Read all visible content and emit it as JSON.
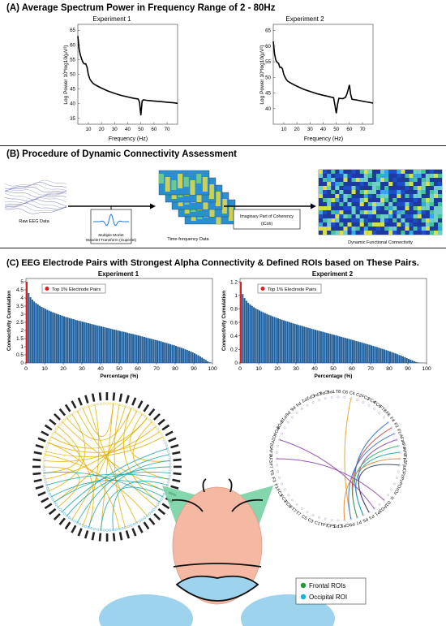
{
  "panel_a": {
    "title": "(A) Average Spectrum Power in Frequency Range of 2 - 80Hz",
    "plot1_title": "Experiment 1",
    "plot2_title": "Experiment 2",
    "xlabel": "Frequency (Hz)",
    "ylabel": "Log Power 10*log10(μV²)"
  },
  "panel_b": {
    "title": "(B) Procedure of Dynamic Connectivity Assessment",
    "raw_label": "Raw EEG Data",
    "wavelet_label_1": "Multiple Morlet",
    "wavelet_label_2": "Wavelet Transform (Superlet)",
    "tf_label": "Time-frequency Data",
    "icoh_label_1": "Imaginary Part of Coherency",
    "icoh_label_2": "(iCoh)",
    "dfc_label": "Dynamic Functional Connectivity"
  },
  "panel_c": {
    "title": "(C) EEG Electrode Pairs with Strongest Alpha Connectivity & Defined ROIs based on These Pairs.",
    "plot1_title": "Experiment 1",
    "plot2_title": "Experiment 2",
    "xlabel": "Percentage (%)",
    "ylabel": "Connectivity Cumulation",
    "legend": "Top 1% Electrode Pairs",
    "roi_frontal": "Frontal ROIs",
    "roi_occipital": "Occipital ROI",
    "colors": {
      "frontal": "#1f9d3c",
      "occipital": "#1bb3d6",
      "top": "#e41a1c",
      "bars": "#1f5f9b"
    }
  },
  "circle2_labels": [
    "T8",
    "C6",
    "C4",
    "C2",
    "FC2",
    "FC4",
    "FC6",
    "FT8",
    "F6",
    "F4",
    "F2",
    "Fz",
    "AFz",
    "AF4",
    "AF8",
    "Fp2",
    "Fpz",
    "CPz",
    "Pz",
    "POz",
    "Oz",
    "Iz",
    "O1",
    "PO3",
    "P1",
    "P3",
    "P5",
    "P7",
    "P9",
    "CP1",
    "CP3",
    "CP5",
    "TP7",
    "C1",
    "C3",
    "C5",
    "T7",
    "FT7",
    "FC5",
    "FC3",
    "FC1",
    "F1",
    "F3",
    "F5",
    "F7",
    "AF3",
    "AF7",
    "Fp1",
    "O2",
    "PO4",
    "PO8",
    "P10",
    "P8",
    "P6",
    "P4",
    "P2",
    "CP2",
    "CP4",
    "CP6",
    "TP8"
  ],
  "chart_data": [
    {
      "type": "line",
      "title": "Experiment 1",
      "xlabel": "Frequency (Hz)",
      "ylabel": "Log Power 10*log10(μV²)",
      "xlim": [
        2,
        78
      ],
      "ylim": [
        33,
        67
      ],
      "xticks": [
        10,
        20,
        30,
        40,
        50,
        60,
        70
      ],
      "yticks": [
        35,
        40,
        45,
        50,
        55,
        60,
        65
      ],
      "x": [
        2,
        3,
        4,
        5,
        6,
        7,
        8,
        9,
        10,
        11,
        12,
        13,
        14,
        15,
        17,
        20,
        25,
        30,
        35,
        40,
        45,
        48,
        49,
        49.5,
        50,
        50.5,
        51,
        52,
        55,
        60,
        65,
        70,
        75,
        78
      ],
      "y": [
        63,
        58.5,
        56.5,
        55,
        54,
        53.5,
        53.6,
        52.5,
        50,
        48.5,
        47.8,
        47.2,
        46.8,
        46.5,
        46,
        45.3,
        44.3,
        43.5,
        42.8,
        42.3,
        41.8,
        41.6,
        40.5,
        38,
        36,
        38.5,
        40.9,
        41.3,
        41.1,
        40.9,
        40.7,
        40.5,
        40.3,
        40.1
      ]
    },
    {
      "type": "line",
      "title": "Experiment 2",
      "xlabel": "Frequency (Hz)",
      "ylabel": "Log Power 10*log10(μV²)",
      "xlim": [
        2,
        78
      ],
      "ylim": [
        35,
        67
      ],
      "xticks": [
        10,
        20,
        30,
        40,
        50,
        60,
        70
      ],
      "yticks": [
        40,
        45,
        50,
        55,
        60,
        65
      ],
      "x": [
        2,
        3,
        4,
        5,
        6,
        7,
        8,
        9,
        10,
        11,
        12,
        13,
        15,
        18,
        20,
        25,
        30,
        35,
        40,
        45,
        48,
        49,
        50,
        51,
        52,
        55,
        57,
        58,
        59,
        60,
        61,
        62,
        65,
        70,
        78
      ],
      "y": [
        61.5,
        57.5,
        55.5,
        54.8,
        54.5,
        53.2,
        53.3,
        52.8,
        51,
        50,
        49.3,
        48.8,
        48.3,
        47.6,
        47.2,
        46.2,
        45.5,
        44.8,
        44.3,
        43.8,
        43.5,
        41,
        38.5,
        41.5,
        43.3,
        43.2,
        43.6,
        44.5,
        46,
        47.6,
        44.5,
        43,
        42.8,
        42.4,
        41.8
      ]
    },
    {
      "type": "bar",
      "title": "Experiment 1",
      "xlabel": "Percentage (%)",
      "ylabel": "Connectivity Cumulation",
      "xlim": [
        0,
        100
      ],
      "ylim": [
        0,
        5.2
      ],
      "xticks": [
        0,
        10,
        20,
        30,
        40,
        50,
        60,
        70,
        80,
        90,
        100
      ],
      "yticks": [
        0,
        0.5,
        1,
        1.5,
        2,
        2.5,
        3,
        3.5,
        4,
        4.5,
        5
      ],
      "legend": "Top 1% Electrode Pairs",
      "legend_position": "top-left",
      "bar_count": 100,
      "values": [
        5.0,
        4.3,
        4.05,
        3.9,
        3.78,
        3.68,
        3.6,
        3.52,
        3.45,
        3.39,
        3.33,
        3.27,
        3.22,
        3.17,
        3.12,
        3.08,
        3.03,
        2.99,
        2.95,
        2.91,
        2.87,
        2.83,
        2.8,
        2.76,
        2.73,
        2.7,
        2.66,
        2.63,
        2.6,
        2.57,
        2.54,
        2.51,
        2.48,
        2.45,
        2.42,
        2.39,
        2.36,
        2.33,
        2.3,
        2.28,
        2.25,
        2.22,
        2.19,
        2.16,
        2.14,
        2.11,
        2.08,
        2.05,
        2.03,
        2.0,
        1.97,
        1.94,
        1.92,
        1.89,
        1.86,
        1.83,
        1.8,
        1.78,
        1.75,
        1.72,
        1.69,
        1.66,
        1.63,
        1.6,
        1.57,
        1.54,
        1.51,
        1.48,
        1.45,
        1.42,
        1.39,
        1.36,
        1.33,
        1.29,
        1.26,
        1.23,
        1.19,
        1.16,
        1.12,
        1.09,
        1.05,
        1.01,
        0.97,
        0.93,
        0.89,
        0.84,
        0.8,
        0.75,
        0.7,
        0.65,
        0.59,
        0.53,
        0.47,
        0.4,
        0.33,
        0.26,
        0.18,
        0.1,
        0.04,
        0.01
      ]
    },
    {
      "type": "bar",
      "title": "Experiment 2",
      "xlabel": "Percentage (%)",
      "ylabel": "Connectivity Cumulation",
      "xlim": [
        0,
        100
      ],
      "ylim": [
        0,
        1.25
      ],
      "xticks": [
        0,
        10,
        20,
        30,
        40,
        50,
        60,
        70,
        80,
        90,
        100
      ],
      "yticks": [
        0,
        0.2,
        0.4,
        0.6,
        0.8,
        1,
        1.2
      ],
      "legend": "Top 1% Electrode Pairs",
      "legend_position": "top-left",
      "bar_count": 100,
      "values": [
        1.2,
        1.02,
        0.96,
        0.92,
        0.89,
        0.865,
        0.845,
        0.825,
        0.808,
        0.792,
        0.777,
        0.763,
        0.75,
        0.737,
        0.725,
        0.713,
        0.702,
        0.691,
        0.68,
        0.67,
        0.66,
        0.65,
        0.64,
        0.631,
        0.622,
        0.613,
        0.604,
        0.595,
        0.587,
        0.578,
        0.57,
        0.562,
        0.554,
        0.546,
        0.538,
        0.53,
        0.522,
        0.514,
        0.506,
        0.499,
        0.491,
        0.483,
        0.476,
        0.468,
        0.461,
        0.453,
        0.446,
        0.438,
        0.431,
        0.423,
        0.416,
        0.408,
        0.401,
        0.393,
        0.386,
        0.378,
        0.371,
        0.363,
        0.356,
        0.348,
        0.34,
        0.333,
        0.325,
        0.317,
        0.309,
        0.301,
        0.293,
        0.285,
        0.277,
        0.269,
        0.26,
        0.252,
        0.243,
        0.235,
        0.226,
        0.217,
        0.208,
        0.199,
        0.19,
        0.18,
        0.17,
        0.16,
        0.15,
        0.14,
        0.129,
        0.118,
        0.107,
        0.096,
        0.084,
        0.072,
        0.06,
        0.048,
        0.036,
        0.025,
        0.015,
        0.008,
        0.004,
        0.002,
        0.001,
        0.0
      ]
    }
  ]
}
